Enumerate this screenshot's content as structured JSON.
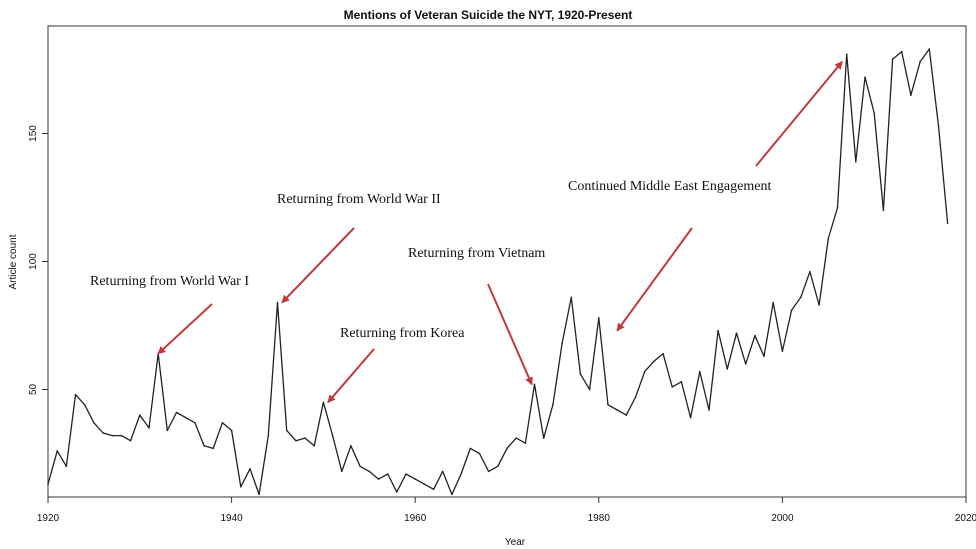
{
  "chart_data": {
    "type": "line",
    "title": "Mentions of Veteran Suicide the NYT, 1920-Present",
    "xlabel": "Year",
    "ylabel": "Article count",
    "xlim": [
      1920,
      2020
    ],
    "ylim": [
      8,
      192
    ],
    "xticks": [
      1920,
      1940,
      1960,
      1980,
      2000,
      2020
    ],
    "yticks": [
      50,
      100,
      150
    ],
    "grid": false,
    "line_color": "#222222",
    "arrow_color": "#c0393b",
    "series": [
      {
        "x": [
          1920,
          1921,
          1922,
          1923,
          1924,
          1925,
          1926,
          1927,
          1928,
          1929,
          1930,
          1931,
          1932,
          1933,
          1934,
          1935,
          1936,
          1937,
          1938,
          1939,
          1940,
          1941,
          1942,
          1943,
          1944,
          1945,
          1946,
          1947,
          1948,
          1949,
          1950,
          1951,
          1952,
          1953,
          1954,
          1955,
          1956,
          1957,
          1958,
          1959,
          1960,
          1961,
          1962,
          1963,
          1964,
          1965,
          1966,
          1967,
          1968,
          1969,
          1970,
          1971,
          1972,
          1973,
          1974,
          1975,
          1976,
          1977,
          1978,
          1979,
          1980,
          1981,
          1982,
          1983,
          1984,
          1985,
          1986,
          1987,
          1988,
          1989,
          1990,
          1991,
          1992,
          1993,
          1994,
          1995,
          1996,
          1997,
          1998,
          1999,
          2000,
          2001,
          2002,
          2003,
          2004,
          2005,
          2006,
          2007,
          2008,
          2009,
          2010,
          2011,
          2012,
          2013,
          2014,
          2015,
          2016,
          2017,
          2018
        ],
        "values": [
          13,
          26,
          20,
          48,
          44,
          37,
          33,
          32,
          32,
          30,
          40,
          35,
          64,
          34,
          41,
          39,
          37,
          28,
          27,
          37,
          34,
          12,
          19,
          9,
          32,
          84,
          34,
          30,
          31,
          28,
          45,
          32,
          18,
          28,
          20,
          18,
          15,
          17,
          10,
          17,
          15,
          13,
          11,
          18,
          9,
          17,
          27,
          25,
          18,
          20,
          27,
          31,
          29,
          52,
          31,
          44,
          68,
          86,
          56,
          50,
          78,
          44,
          42,
          40,
          47,
          57,
          61,
          64,
          51,
          53,
          39,
          57,
          42,
          73,
          58,
          72,
          60,
          71,
          63,
          84,
          65,
          81,
          86,
          96,
          83,
          109,
          121,
          181,
          139,
          172,
          158,
          120,
          179,
          182,
          165,
          178,
          183,
          153,
          115
        ]
      }
    ],
    "annotations": [
      {
        "text": "Returning from World War I",
        "arrow_to_year": 1932,
        "arrow_to_value": 64
      },
      {
        "text": "Returning from World War II",
        "arrow_to_year": 1945.5,
        "arrow_to_value": 84
      },
      {
        "text": "Returning from Korea",
        "arrow_to_year": 1950.5,
        "arrow_to_value": 45
      },
      {
        "text": "Returning from Vietnam",
        "arrow_to_year": 1972.7,
        "arrow_to_value": 52
      },
      {
        "text": "Continued Middle East Engagement",
        "arrow_to_year_a": 1982,
        "arrow_to_value_a": 73,
        "arrow_to_year_b": 2006.5,
        "arrow_to_value_b": 178
      }
    ]
  }
}
